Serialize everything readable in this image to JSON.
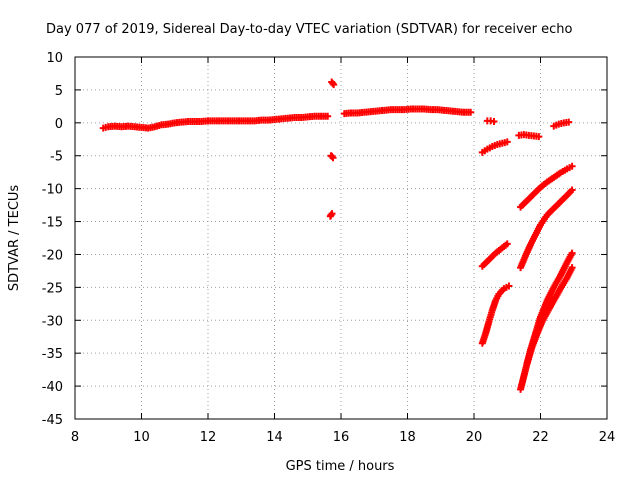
{
  "chart_data": {
    "type": "scatter",
    "title": "Day 077 of 2019, Sidereal Day-to-day VTEC variation (SDTVAR) for receiver echo",
    "xlabel": "GPS time / hours",
    "ylabel": "SDTVAR / TECUs",
    "xlim": [
      8,
      24
    ],
    "ylim": [
      -45,
      10
    ],
    "x_ticks": [
      "8",
      "10",
      "12",
      "14",
      "16",
      "18",
      "20",
      "22",
      "24"
    ],
    "y_ticks": [
      "10",
      "5",
      "0",
      "-5",
      "-10",
      "-15",
      "-20",
      "-25",
      "-30",
      "-35",
      "-40",
      "-45"
    ],
    "grid": true,
    "marker": "cross",
    "series_color": "#ff0000",
    "series": [
      {
        "x": [
          8.85,
          9.0,
          9.2,
          9.4,
          9.6,
          9.8,
          10.0,
          10.2,
          10.4,
          10.6,
          10.8,
          11.0,
          11.2,
          11.4,
          11.6,
          11.8,
          12.0,
          12.2,
          12.4,
          12.6,
          12.8,
          13.0,
          13.2,
          13.4,
          13.6,
          13.8,
          14.0,
          14.2,
          14.4,
          14.6,
          14.8,
          15.0,
          15.2,
          15.4,
          15.6
        ],
        "y": [
          -0.8,
          -0.6,
          -0.5,
          -0.6,
          -0.5,
          -0.6,
          -0.7,
          -0.8,
          -0.6,
          -0.3,
          -0.2,
          0.0,
          0.1,
          0.2,
          0.2,
          0.2,
          0.3,
          0.3,
          0.3,
          0.3,
          0.3,
          0.3,
          0.3,
          0.3,
          0.4,
          0.4,
          0.5,
          0.6,
          0.7,
          0.8,
          0.8,
          0.9,
          1.0,
          1.0,
          1.0
        ]
      },
      {
        "x": [
          15.72,
          15.75,
          15.78,
          15.7,
          15.73,
          15.76,
          15.68,
          15.7,
          15.73
        ],
        "y": [
          6.2,
          6.0,
          5.8,
          -5.0,
          -5.1,
          -5.3,
          -14.2,
          -14.0,
          -13.8
        ]
      },
      {
        "x": [
          16.1,
          16.3,
          16.5,
          16.7,
          16.9,
          17.1,
          17.3,
          17.5,
          17.7,
          17.9,
          18.1,
          18.3,
          18.5,
          18.7,
          18.9,
          19.1,
          19.3,
          19.5,
          19.7,
          19.9
        ],
        "y": [
          1.4,
          1.5,
          1.5,
          1.6,
          1.7,
          1.8,
          1.9,
          2.0,
          2.0,
          2.0,
          2.1,
          2.1,
          2.1,
          2.0,
          2.0,
          1.9,
          1.8,
          1.7,
          1.6,
          1.6
        ]
      },
      {
        "x": [
          20.4,
          20.5,
          20.6
        ],
        "y": [
          0.3,
          0.3,
          0.2
        ]
      },
      {
        "x": [
          20.25,
          20.4,
          20.55,
          20.7,
          20.85,
          21.0
        ],
        "y": [
          -4.5,
          -4.0,
          -3.6,
          -3.3,
          -3.1,
          -2.9
        ]
      },
      {
        "x": [
          21.35,
          21.5,
          21.65,
          21.8,
          21.95
        ],
        "y": [
          -1.9,
          -1.8,
          -1.9,
          -2.0,
          -2.1
        ]
      },
      {
        "x": [
          22.4,
          22.55,
          22.7,
          22.85
        ],
        "y": [
          -0.5,
          -0.2,
          0.0,
          0.1
        ]
      },
      {
        "x": [
          20.25,
          20.45,
          20.65,
          20.85,
          21.0
        ],
        "y": [
          -21.8,
          -20.8,
          -19.8,
          -19.0,
          -18.4
        ]
      },
      {
        "x": [
          20.25,
          20.35,
          20.45,
          20.55,
          20.65,
          20.75,
          20.9,
          21.05
        ],
        "y": [
          -33.5,
          -32.0,
          -30.2,
          -28.5,
          -27.0,
          -26.0,
          -25.2,
          -24.8
        ]
      },
      {
        "x": [
          21.4,
          21.6,
          21.8,
          22.0,
          22.2,
          22.4,
          22.6,
          22.8,
          22.95
        ],
        "y": [
          -12.8,
          -11.8,
          -10.8,
          -9.8,
          -9.0,
          -8.3,
          -7.6,
          -7.0,
          -6.6
        ]
      },
      {
        "x": [
          21.4,
          21.55,
          21.7,
          21.85,
          22.0,
          22.2,
          22.4,
          22.6,
          22.8,
          22.95
        ],
        "y": [
          -22.0,
          -20.2,
          -18.5,
          -17.0,
          -15.5,
          -14.0,
          -13.0,
          -12.0,
          -11.0,
          -10.2
        ]
      },
      {
        "x": [
          21.4,
          21.55,
          21.7,
          21.85,
          22.0,
          22.2,
          22.4,
          22.6,
          22.8,
          22.95
        ],
        "y": [
          -40.5,
          -37.5,
          -34.5,
          -32.0,
          -29.5,
          -27.0,
          -25.0,
          -23.2,
          -21.2,
          -19.8
        ]
      },
      {
        "x": [
          21.6,
          21.75,
          21.9,
          22.05,
          22.2,
          22.4,
          22.6,
          22.8,
          22.95
        ],
        "y": [
          -36.5,
          -34.0,
          -32.0,
          -30.2,
          -28.8,
          -27.0,
          -25.2,
          -23.5,
          -22.0
        ]
      }
    ]
  }
}
